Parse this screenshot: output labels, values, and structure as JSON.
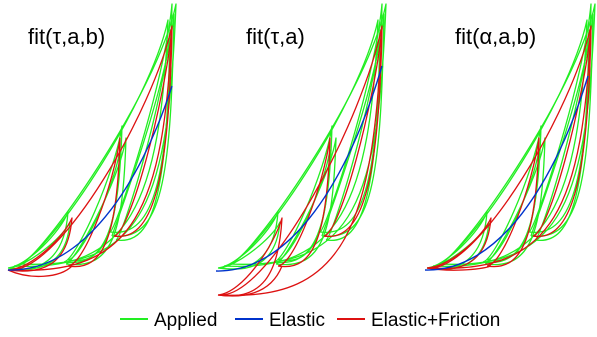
{
  "chart_data": {
    "type": "line",
    "title": "",
    "xlabel": "",
    "ylabel": "",
    "grid": false,
    "legend_placement": "bottom-center",
    "legend": [
      {
        "label": "Applied",
        "color": "#22ee22"
      },
      {
        "label": "Elastic",
        "color": "#0033cc"
      },
      {
        "label": "Elastic+Friction",
        "color": "#dd1111"
      }
    ],
    "panels": [
      {
        "title": "fit(τ,a,b)"
      },
      {
        "title": "fit(τ,a)"
      },
      {
        "title": "fit(α,a,b)"
      }
    ]
  }
}
